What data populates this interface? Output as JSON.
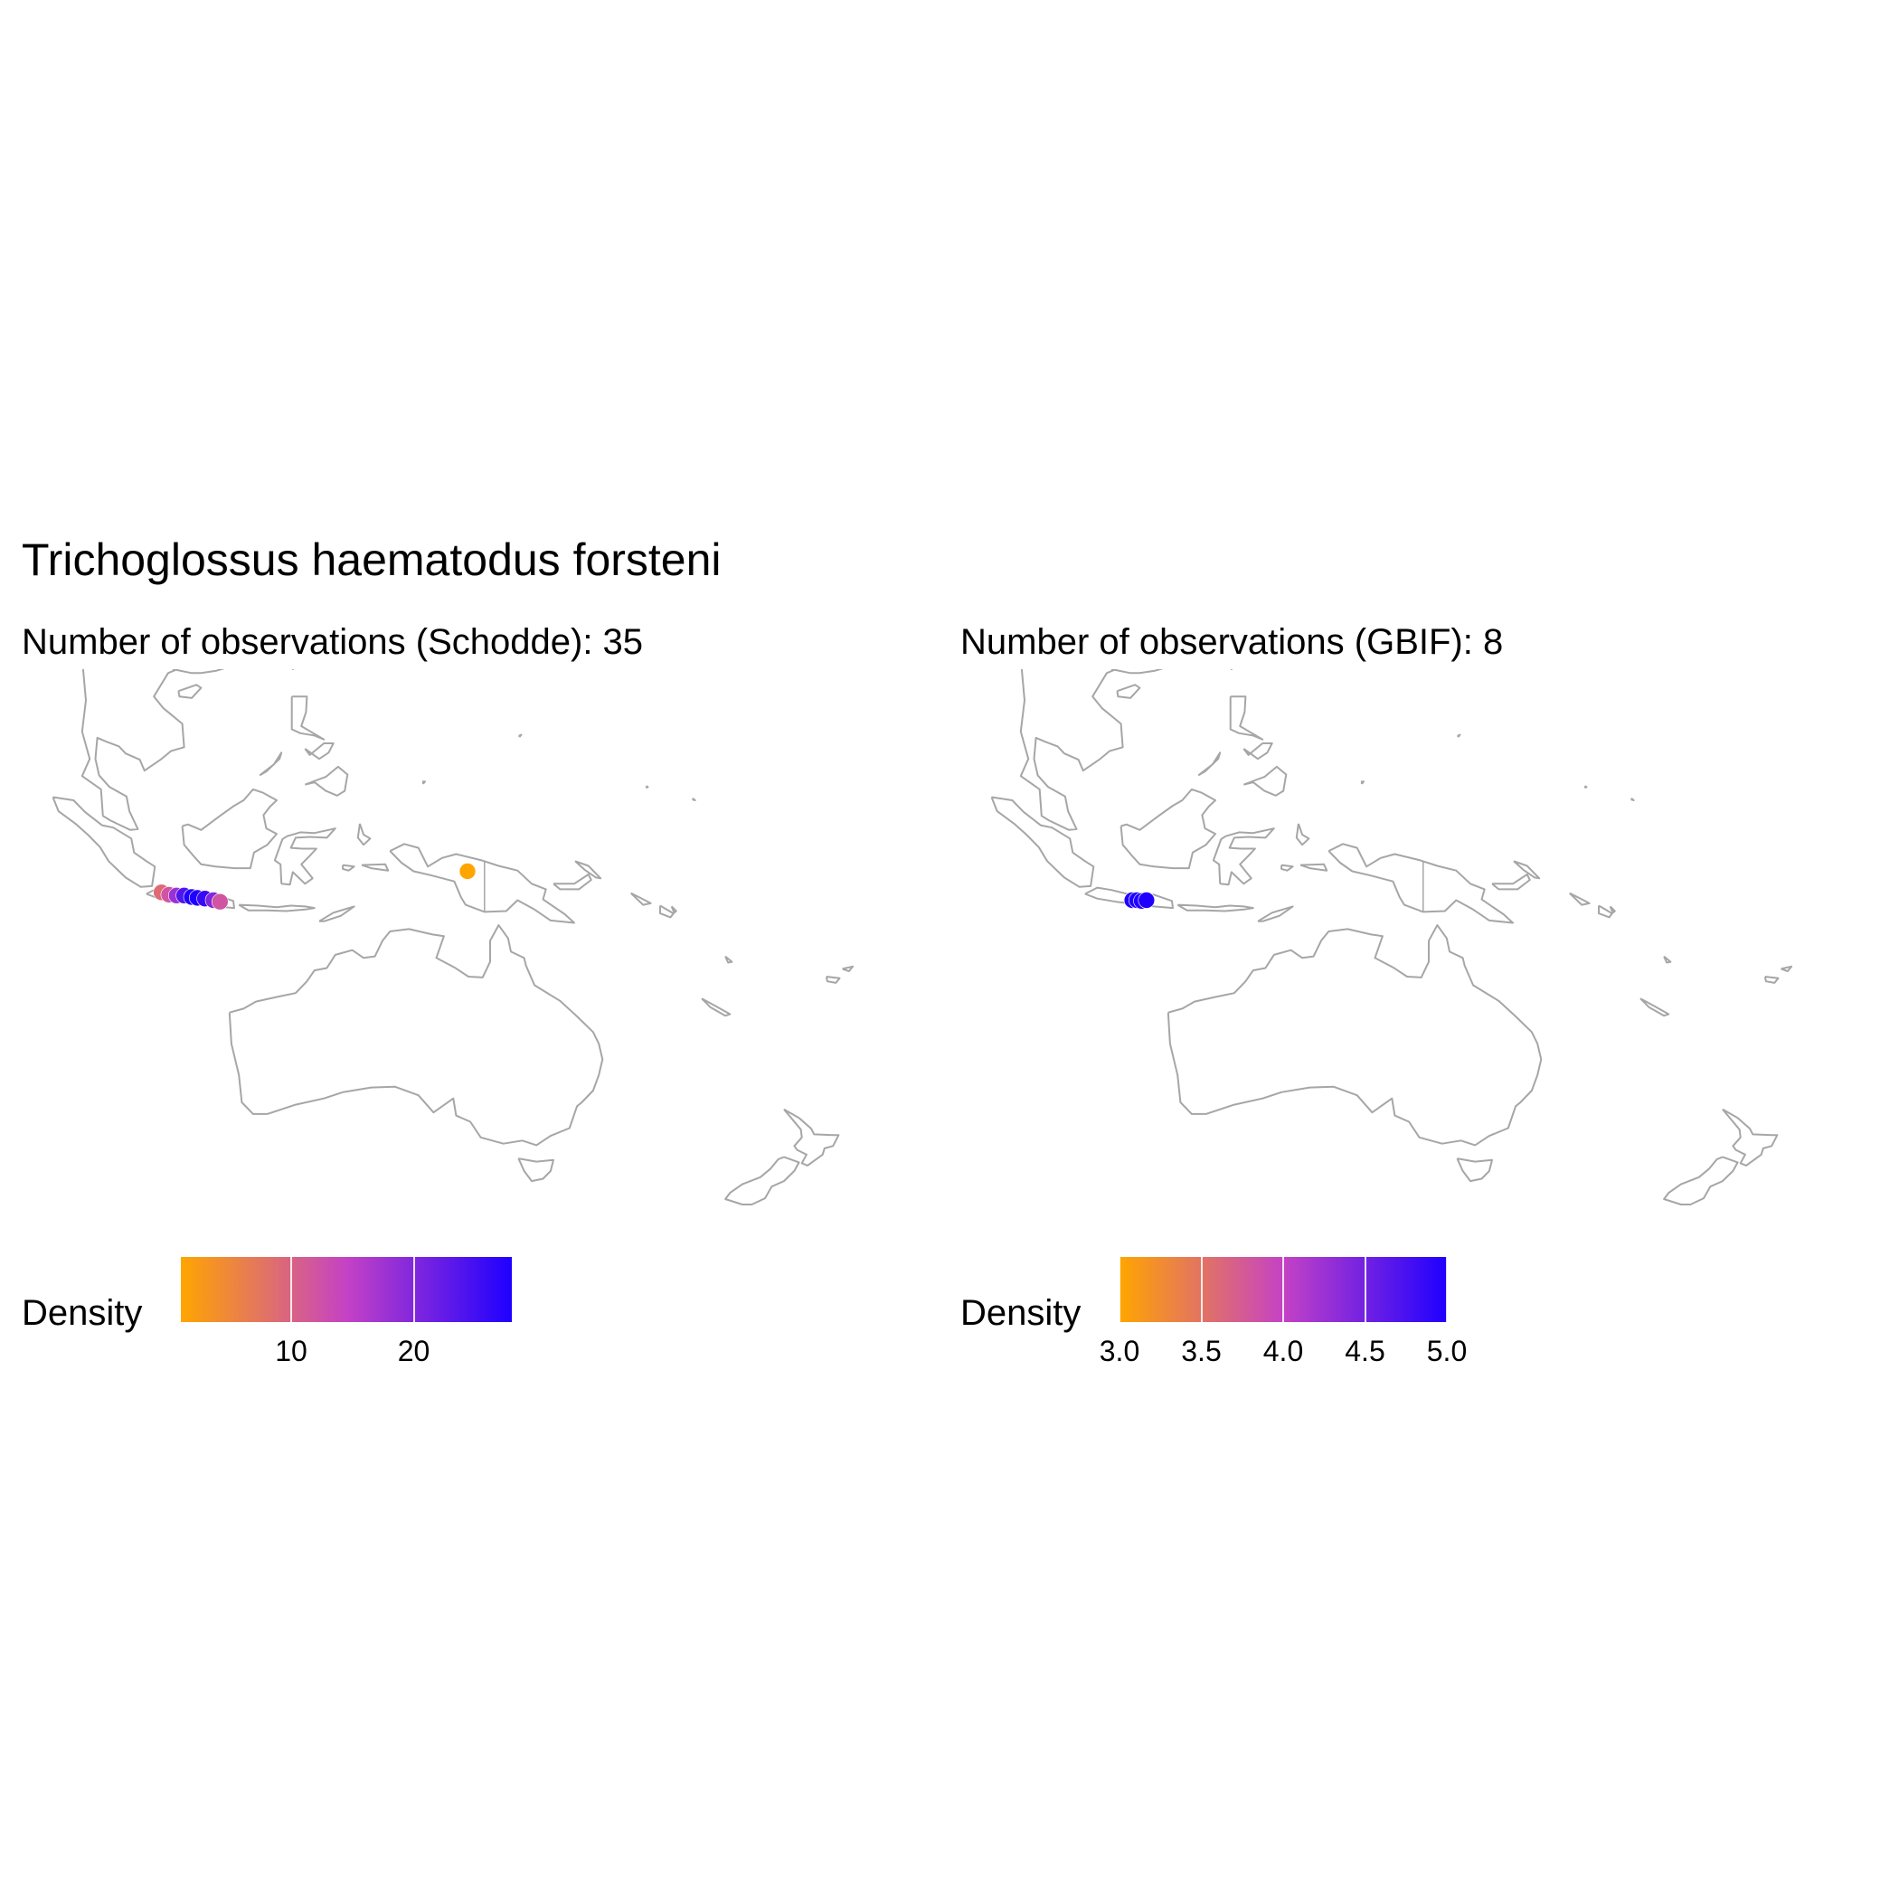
{
  "title": "Trichoglossus haematodus forsteni",
  "colors": {
    "low": "#FFA500",
    "mid": "#C542C5",
    "high": "#1F00FF",
    "land": "#a6a6a6"
  },
  "panels": [
    {
      "subtitle": "Number of observations (Schodde): 35",
      "legend": {
        "title": "Density",
        "min": 1,
        "max": 28,
        "ticks": [
          "10",
          "20"
        ],
        "tick_values": [
          10,
          20
        ]
      },
      "points": [
        {
          "lon": 106.8,
          "lat": -6.6,
          "density": 9
        },
        {
          "lon": 107.6,
          "lat": -6.9,
          "density": 12
        },
        {
          "lon": 108.4,
          "lat": -7.0,
          "density": 18
        },
        {
          "lon": 109.2,
          "lat": -7.0,
          "density": 24
        },
        {
          "lon": 110.0,
          "lat": -7.2,
          "density": 28
        },
        {
          "lon": 110.6,
          "lat": -7.3,
          "density": 28
        },
        {
          "lon": 111.4,
          "lat": -7.4,
          "density": 26
        },
        {
          "lon": 112.3,
          "lat": -7.6,
          "density": 20
        },
        {
          "lon": 113.0,
          "lat": -7.8,
          "density": 12
        },
        {
          "lon": 139.2,
          "lat": -3.9,
          "density": 1
        }
      ]
    },
    {
      "subtitle": "Number of observations (GBIF): 8",
      "legend": {
        "title": "Density",
        "min": 3.0,
        "max": 5.0,
        "ticks": [
          "3.0",
          "3.5",
          "4.0",
          "4.5",
          "5.0"
        ],
        "tick_values": [
          3.0,
          3.5,
          4.0,
          4.5,
          5.0
        ]
      },
      "points": [
        {
          "lon": 110.2,
          "lat": -7.6,
          "density": 5
        },
        {
          "lon": 110.7,
          "lat": -7.6,
          "density": 5
        },
        {
          "lon": 111.2,
          "lat": -7.7,
          "density": 5
        },
        {
          "lon": 111.7,
          "lat": -7.6,
          "density": 5
        }
      ]
    }
  ]
}
